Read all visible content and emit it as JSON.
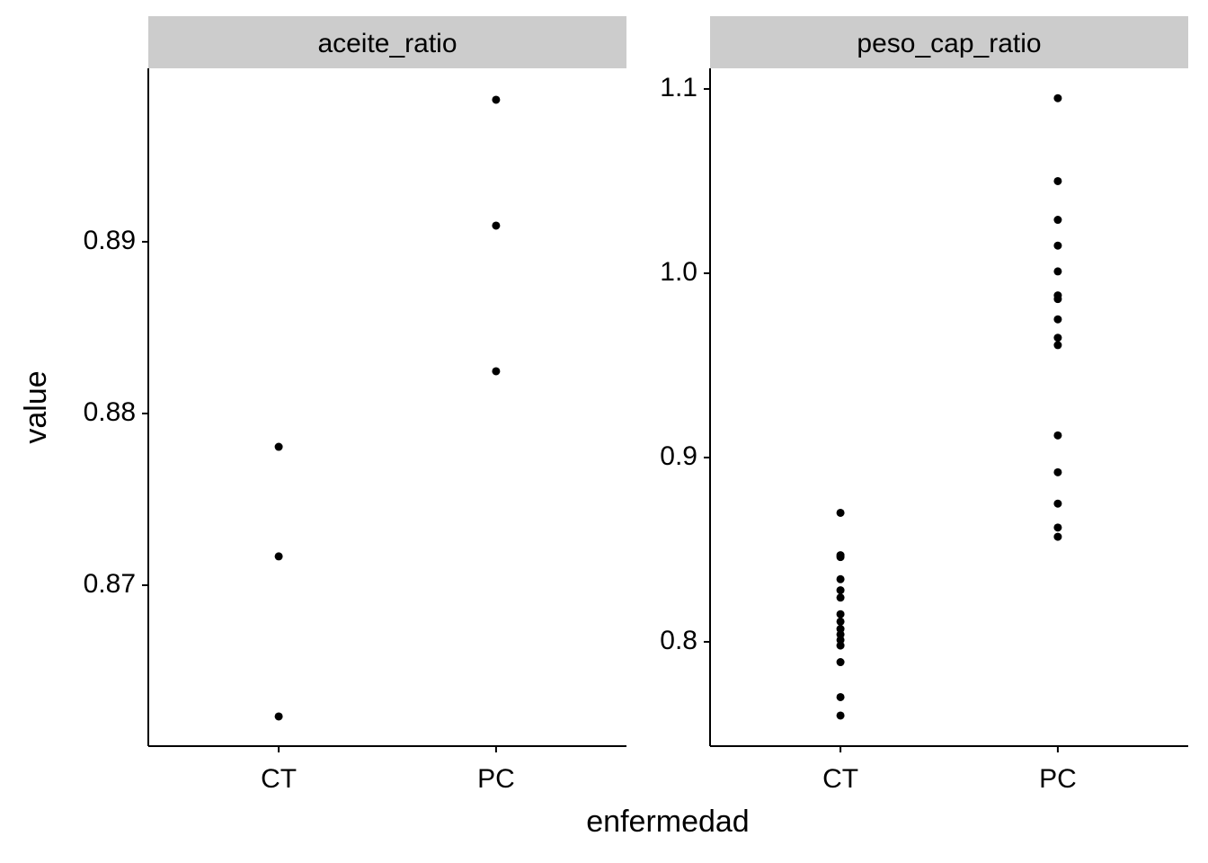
{
  "chart_data": [
    {
      "type": "strip",
      "title": "aceite_ratio",
      "categories": [
        "CT",
        "PC"
      ],
      "values": [
        [
          0.87806,
          0.87168,
          0.86236
        ],
        [
          0.89827,
          0.89094,
          0.88246
        ]
      ],
      "color": "#000000",
      "ylim": [
        0.86063,
        0.9001
      ],
      "yticks": [
        0.87,
        0.88,
        0.89
      ]
    },
    {
      "type": "strip",
      "title": "peso_cap_ratio",
      "categories": [
        "CT",
        "PC"
      ],
      "values": [
        [
          0.87,
          0.847,
          0.846,
          0.834,
          0.828,
          0.824,
          0.815,
          0.811,
          0.807,
          0.804,
          0.801,
          0.798,
          0.789,
          0.77,
          0.76
        ],
        [
          1.095,
          1.05,
          1.029,
          1.015,
          1.001,
          0.988,
          0.986,
          0.975,
          0.965,
          0.961,
          0.912,
          0.892,
          0.875,
          0.862,
          0.857
        ]
      ],
      "color": "#000000",
      "ylim": [
        0.7434,
        1.1112
      ],
      "yticks": [
        0.8,
        0.9,
        {
          "value": 1,
          "label": "1.0"
        },
        1.1
      ]
    }
  ],
  "xlabel": "enfermedad",
  "ylabel": "value"
}
